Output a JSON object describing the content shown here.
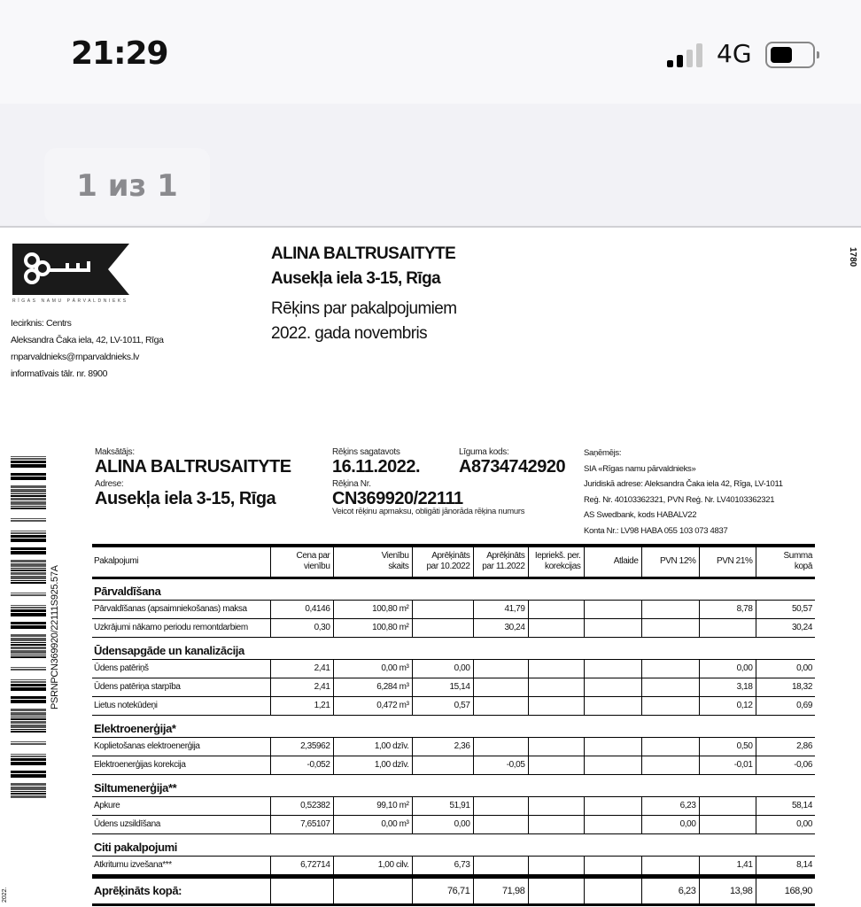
{
  "status_bar": {
    "time": "21:29",
    "network": "4G",
    "signal_bars": 2,
    "battery_level": 0.5
  },
  "viewer": {
    "page_indicator": "1 из 1"
  },
  "document": {
    "logo_text": "RĪGAS NAMU PĀRVALDNIEKS",
    "side_number": "1780",
    "issuer": {
      "district": "Iecirknis: Centrs",
      "address": "Aleksandra Čaka iela, 42, LV-1011, Rīga",
      "email": "rnparvaldnieks@rnparvaldnieks.lv",
      "phone": "informatīvais tālr. nr. 8900"
    },
    "recipient": {
      "name": "ALINA BALTRUSAITYTE",
      "address": "Ausekļa iela 3-15, Rīga"
    },
    "title": {
      "line1": "Rēķins par pakalpojumiem",
      "line2": "2022. gada novembris"
    },
    "barcode_text": "PSRNPCN369920/22111S925.57A",
    "footer_fragment": "2022.",
    "payer": {
      "label": "Maksātājs:",
      "name": "ALINA BALTRUSAITYTE",
      "address_label": "Adrese:",
      "address": "Ausekļa iela 3-15, Rīga"
    },
    "invoice": {
      "date_label": "Rēķins sagatavots",
      "date": "16.11.2022.",
      "contract_label": "Līguma kods:",
      "contract": "A8734742920",
      "number_label": "Rēķina Nr.",
      "number": "CN369920/22111",
      "note": "Veicot rēķinu apmaksu, obligāti jānorāda rēķina numurs"
    },
    "receiver": {
      "label": "Saņēmējs:",
      "name": "SIA «Rīgas namu pārvaldnieks»",
      "legal": "Juridiskā adrese: Aleksandra Čaka iela 42, Rīga, LV-1011",
      "reg": "Reģ. Nr. 40103362321, PVN Reģ. Nr. LV40103362321",
      "bank": "AS Swedbank, kods HABALV22",
      "account": "Konta Nr.: LV98 HABA 055 103 073 4837"
    },
    "table": {
      "headers": [
        "Pakalpojumi",
        "Cena par\nvienību",
        "Vienību\nskaits",
        "Aprēķināts\npar 10.2022",
        "Aprēķināts\npar 11.2022",
        "Iepriekš. per.\nkorekcijas",
        "Atlaide",
        "PVN 12%",
        "PVN 21%",
        "Summa\nkopā"
      ],
      "sections": [
        {
          "title": "Pārvaldīšana",
          "rows": [
            [
              "Pārvaldīšanas (apsaimniekošanas) maksa",
              "0,4146",
              "100,80 m²",
              "",
              "41,79",
              "",
              "",
              "",
              "8,78",
              "50,57"
            ],
            [
              "Uzkrājumi nākamo periodu remontdarbiem",
              "0,30",
              "100,80 m²",
              "",
              "30,24",
              "",
              "",
              "",
              "",
              "30,24"
            ]
          ]
        },
        {
          "title": "Ūdensapgāde un kanalizācija",
          "rows": [
            [
              "Ūdens patēriņš",
              "2,41",
              "0,00 m³",
              "0,00",
              "",
              "",
              "",
              "",
              "0,00",
              "0,00"
            ],
            [
              "Ūdens patēriņa starpība",
              "2,41",
              "6,284 m³",
              "15,14",
              "",
              "",
              "",
              "",
              "3,18",
              "18,32"
            ],
            [
              "Lietus notekūdeņi",
              "1,21",
              "0,472 m³",
              "0,57",
              "",
              "",
              "",
              "",
              "0,12",
              "0,69"
            ]
          ]
        },
        {
          "title": "Elektroenerģija*",
          "rows": [
            [
              "Koplietošanas elektroenerģija",
              "2,35962",
              "1,00 dzīv.",
              "2,36",
              "",
              "",
              "",
              "",
              "0,50",
              "2,86"
            ],
            [
              "Elektroenerģijas korekcija",
              "-0,052",
              "1,00 dzīv.",
              "",
              "-0,05",
              "",
              "",
              "",
              "-0,01",
              "-0,06"
            ]
          ]
        },
        {
          "title": "Siltumenerģija**",
          "rows": [
            [
              "Apkure",
              "0,52382",
              "99,10 m²",
              "51,91",
              "",
              "",
              "",
              "6,23",
              "",
              "58,14"
            ],
            [
              "Ūdens uzsildīšana",
              "7,65107",
              "0,00 m³",
              "0,00",
              "",
              "",
              "",
              "0,00",
              "",
              "0,00"
            ]
          ]
        },
        {
          "title": "Citi pakalpojumi",
          "rows": [
            [
              "Atkritumu izvešana***",
              "6,72714",
              "1,00 cilv.",
              "6,73",
              "",
              "",
              "",
              "",
              "1,41",
              "8,14"
            ]
          ]
        }
      ],
      "total": [
        "Aprēķināts kopā:",
        "",
        "",
        "76,71",
        "71,98",
        "",
        "",
        "6,23",
        "13,98",
        "168,90"
      ]
    }
  }
}
